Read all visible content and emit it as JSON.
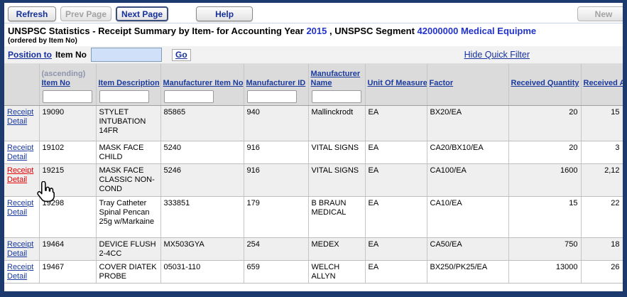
{
  "colors": {
    "window_border": "#1C3A6E",
    "accent_blue": "#2233CC",
    "link_blue": "#1A3A9E",
    "hover_red": "#E40000",
    "header_bg": "#DBDBDB",
    "row_alt": "#EFEFEF",
    "position_input_bg": "#CFE0F8"
  },
  "toolbar": {
    "buttons": [
      {
        "label": "Refresh",
        "enabled": true
      },
      {
        "label": "Prev Page",
        "enabled": false
      },
      {
        "label": "Next Page",
        "enabled": true
      },
      {
        "label": "Help",
        "enabled": true
      }
    ],
    "new_label": "New"
  },
  "title": {
    "parts": [
      {
        "text": "UNSPSC Statistics - Receipt Summary by Item- for Accounting Year "
      },
      {
        "text": "2015"
      },
      {
        "text": " , UNSPSC Segment "
      },
      {
        "text": "42000000"
      },
      {
        "text": "  Medical Equipme"
      }
    ],
    "subtitle": "(ordered by Item No)"
  },
  "position_bar": {
    "link_label": "Position to",
    "field_label": "Item No",
    "input_value": "",
    "go_label": "Go",
    "hide_filter_label": "Hide Quick Filter"
  },
  "table": {
    "columns": [
      {
        "key": "detail",
        "label": "",
        "filter": false
      },
      {
        "key": "item_no",
        "label": "Item No",
        "note": "(ascending)",
        "filter": true
      },
      {
        "key": "description",
        "label": "Item Description",
        "filter": true
      },
      {
        "key": "mfr_item_no",
        "label": "Manufacturer Item No",
        "filter": true
      },
      {
        "key": "mfr_id",
        "label": "Manufacturer ID",
        "filter": true
      },
      {
        "key": "mfr_name",
        "label": "Manufacturer Name",
        "filter": true
      },
      {
        "key": "uom",
        "label": "Unit Of Measure",
        "filter": false
      },
      {
        "key": "factor",
        "label": "Factor",
        "filter": false
      },
      {
        "key": "received_qty",
        "label": "Received Quantity",
        "filter": false
      },
      {
        "key": "received_amt",
        "label": "Received A",
        "filter": false
      }
    ],
    "rows": [
      {
        "link": "Receipt Detail",
        "item_no": "19090",
        "description": "STYLET INTUBATION 14FR",
        "mfr_item_no": "85865",
        "mfr_id": "940",
        "mfr_name": "Mallinckrodt",
        "uom": "EA",
        "factor": "BX20/EA",
        "received_qty": "20",
        "received_amt": "15",
        "link_hovered": false
      },
      {
        "link": "Receipt Detail",
        "item_no": "19102",
        "description": "MASK FACE CHILD",
        "mfr_item_no": "5240",
        "mfr_id": "916",
        "mfr_name": "VITAL SIGNS",
        "uom": "EA",
        "factor": "CA20/BX10/EA",
        "received_qty": "20",
        "received_amt": "3",
        "link_hovered": false
      },
      {
        "link": "Receipt Detail",
        "item_no": "19215",
        "description": "MASK FACE CLASSIC NON-COND",
        "mfr_item_no": "5246",
        "mfr_id": "916",
        "mfr_name": "VITAL SIGNS",
        "uom": "EA",
        "factor": "CA100/EA",
        "received_qty": "1600",
        "received_amt": "2,12",
        "link_hovered": true
      },
      {
        "link": "Receipt Detail",
        "item_no": "19298",
        "description": "Tray Catheter Spinal Pencan 25g w/Markaine",
        "mfr_item_no": "333851",
        "mfr_id": "179",
        "mfr_name": "B BRAUN MEDICAL",
        "uom": "EA",
        "factor": "CA10/EA",
        "received_qty": "15",
        "received_amt": "22",
        "link_hovered": false
      },
      {
        "link": "Receipt Detail",
        "item_no": "19464",
        "description": "DEVICE FLUSH 2-4CC",
        "mfr_item_no": "MX503GYA",
        "mfr_id": "254",
        "mfr_name": "MEDEX",
        "uom": "EA",
        "factor": "CA50/EA",
        "received_qty": "750",
        "received_amt": "18",
        "link_hovered": false
      },
      {
        "link": "Receipt Detail",
        "item_no": "19467",
        "description": "COVER DIATEK PROBE",
        "mfr_item_no": "05031-110",
        "mfr_id": "659",
        "mfr_name": "WELCH ALLYN",
        "uom": "EA",
        "factor": "BX250/PK25/EA",
        "received_qty": "13000",
        "received_amt": "26",
        "link_hovered": false
      }
    ]
  }
}
